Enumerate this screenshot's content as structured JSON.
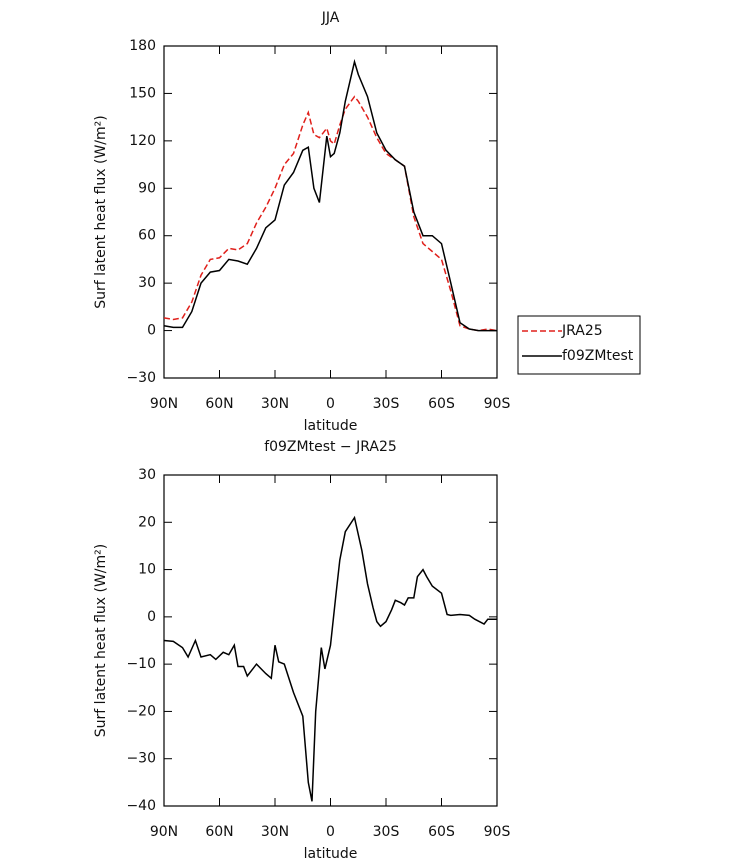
{
  "chart_data": [
    {
      "type": "line",
      "title": "JJA",
      "xlabel": "latitude",
      "ylabel": "Surf latent heat flux (W/m²)",
      "x": [
        90,
        85,
        80,
        75,
        70,
        65,
        60,
        55,
        50,
        45,
        40,
        35,
        30,
        25,
        20,
        15,
        12,
        9,
        6,
        2,
        0,
        -2,
        -5,
        -8,
        -13,
        -15,
        -20,
        -25,
        -30,
        -35,
        -40,
        -45,
        -50,
        -55,
        -60,
        -65,
        -70,
        -75,
        -80,
        -85,
        -90
      ],
      "series": [
        {
          "name": "JRA25",
          "color": "#e0201b",
          "dash": true,
          "values": [
            8,
            7,
            8,
            18,
            35,
            45,
            46,
            52,
            51,
            55,
            68,
            78,
            90,
            105,
            112,
            130,
            138,
            124,
            122,
            128,
            120,
            118,
            130,
            140,
            148,
            145,
            135,
            122,
            112,
            108,
            104,
            72,
            55,
            50,
            45,
            25,
            3,
            1,
            0,
            1,
            0
          ]
        },
        {
          "name": "f09ZMtest",
          "color": "#000000",
          "dash": false,
          "values": [
            3,
            2,
            2,
            12,
            30,
            37,
            38,
            45,
            44,
            42,
            52,
            65,
            70,
            92,
            100,
            114,
            116,
            90,
            81,
            123,
            110,
            112,
            125,
            145,
            170,
            162,
            148,
            125,
            114,
            108,
            104,
            75,
            60,
            60,
            55,
            30,
            5,
            1,
            0,
            0,
            0
          ]
        }
      ],
      "xlim": [
        90,
        -90
      ],
      "xticks": [
        {
          "value": 90,
          "label": "90N"
        },
        {
          "value": 60,
          "label": "60N"
        },
        {
          "value": 30,
          "label": "30N"
        },
        0,
        {
          "value": -30,
          "label": "30S"
        },
        {
          "value": -60,
          "label": "60S"
        },
        {
          "value": -90,
          "label": "90S"
        }
      ],
      "ylim": [
        -30,
        180
      ],
      "yticks": [
        {
          "value": -30,
          "label": "−30"
        },
        0,
        30,
        60,
        90,
        120,
        150,
        180
      ],
      "legend": "right"
    },
    {
      "type": "line",
      "title": "f09ZMtest − JRA25",
      "xlabel": "latitude",
      "ylabel": "Surf latent heat flux (W/m²)",
      "x": [
        90,
        85,
        80,
        77,
        73,
        70,
        65,
        62,
        58,
        55,
        52,
        50,
        47,
        45,
        40,
        35,
        32,
        30,
        28,
        25,
        20,
        15,
        12,
        10,
        8,
        5,
        3,
        0,
        -3,
        -5,
        -8,
        -13,
        -17,
        -20,
        -23,
        -25,
        -27,
        -30,
        -33,
        -35,
        -38,
        -40,
        -42,
        -45,
        -47,
        -50,
        -52,
        -55,
        -60,
        -63,
        -65,
        -70,
        -75,
        -78,
        -83,
        -85,
        -90
      ],
      "series": [
        {
          "name": "f09ZMtest − JRA25",
          "color": "#000000",
          "dash": false,
          "values": [
            -5,
            -5.2,
            -6.5,
            -8.5,
            -5,
            -8.5,
            -8,
            -9,
            -7.5,
            -8,
            -6,
            -10.5,
            -10.5,
            -12.5,
            -10,
            -12,
            -13,
            -6,
            -9.5,
            -10,
            -16,
            -21,
            -35,
            -39,
            -20,
            -6.5,
            -11,
            -6,
            5,
            12,
            18,
            21,
            14,
            7,
            2,
            -1,
            -2,
            -1,
            1.5,
            3.5,
            3,
            2.5,
            4,
            4,
            8.5,
            10,
            8.5,
            6.5,
            5,
            0.5,
            0.3,
            0.5,
            0.3,
            -0.5,
            -1.5,
            -0.5,
            -0.5
          ]
        }
      ],
      "xlim": [
        90,
        -90
      ],
      "xticks": [
        {
          "value": 90,
          "label": "90N"
        },
        {
          "value": 60,
          "label": "60N"
        },
        {
          "value": 30,
          "label": "30N"
        },
        0,
        {
          "value": -30,
          "label": "30S"
        },
        {
          "value": -60,
          "label": "60S"
        },
        {
          "value": -90,
          "label": "90S"
        }
      ],
      "ylim": [
        -40,
        30
      ],
      "yticks": [
        {
          "value": -40,
          "label": "−40"
        },
        {
          "value": -30,
          "label": "−30"
        },
        {
          "value": -20,
          "label": "−20"
        },
        {
          "value": -10,
          "label": "−10"
        },
        0,
        10,
        20,
        30
      ]
    }
  ]
}
